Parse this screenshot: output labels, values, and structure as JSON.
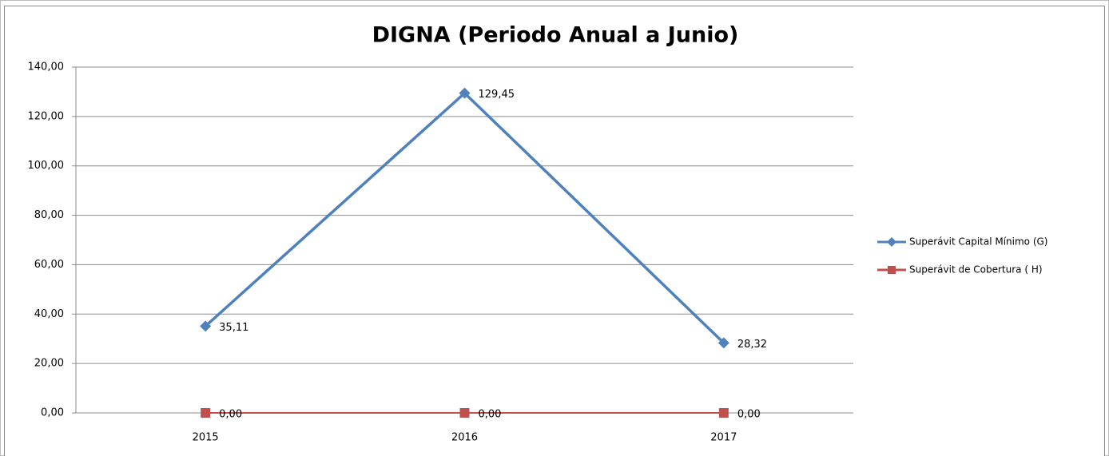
{
  "chart_data": {
    "type": "line",
    "title": "DIGNA (Periodo Anual a Junio)",
    "categories": [
      "2015",
      "2016",
      "2017"
    ],
    "series": [
      {
        "name": "Superávit Capital  Mínimo  (G)",
        "color": "#4f81bd",
        "values": [
          35.11,
          129.45,
          28.32
        ],
        "value_labels": [
          "35,11",
          "129,45",
          "28,32"
        ]
      },
      {
        "name": "Superávit de Cobertura ( H)",
        "color": "#c0504d",
        "values": [
          0,
          0,
          0
        ],
        "value_labels": [
          "0,00",
          "0,00",
          "0,00"
        ]
      }
    ],
    "ylim": [
      0,
      140
    ],
    "yticks": [
      {
        "value": 0,
        "label": "0,00"
      },
      {
        "value": 20,
        "label": "20,00"
      },
      {
        "value": 40,
        "label": "40,00"
      },
      {
        "value": 60,
        "label": "60,00"
      },
      {
        "value": 80,
        "label": "80,00"
      },
      {
        "value": 100,
        "label": "100,00"
      },
      {
        "value": 120,
        "label": "120,00"
      },
      {
        "value": 140,
        "label": "140,00"
      }
    ],
    "grid": true,
    "legend": "right"
  }
}
